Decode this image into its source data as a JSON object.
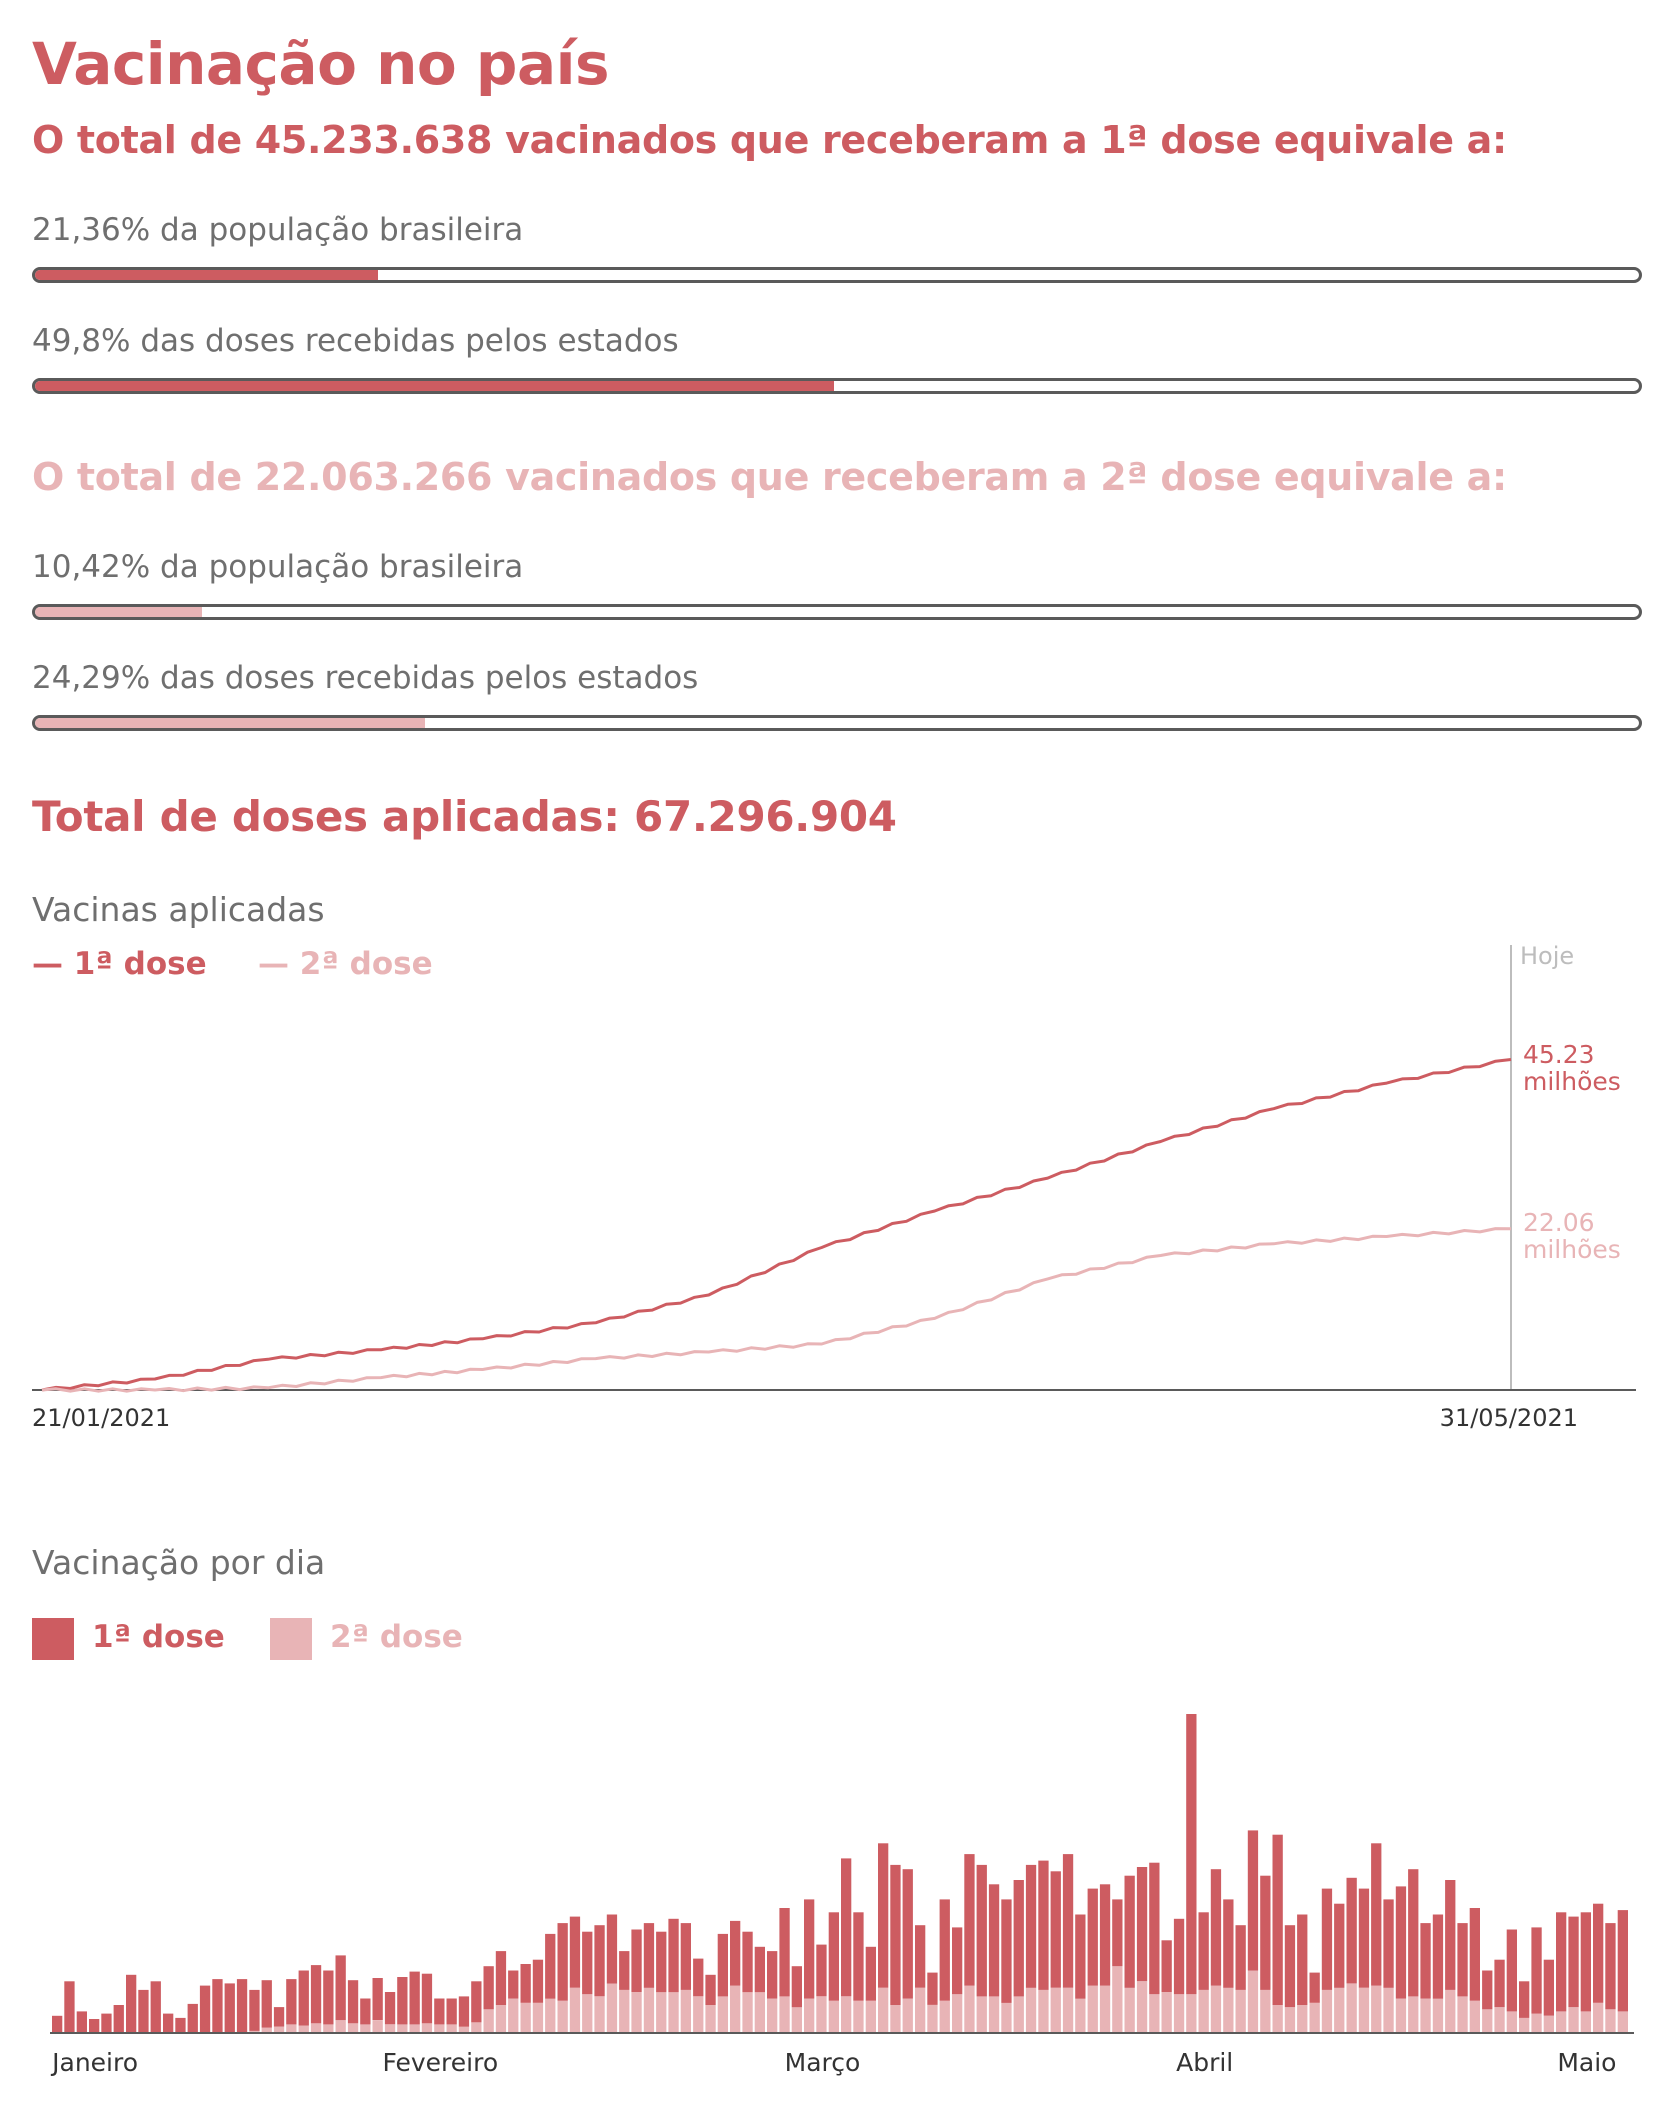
{
  "title": "Vacinação no país",
  "dose1_summary": {
    "heading": "O total de 45.233.638 vacinados que receberam a 1ª dose equivale a:",
    "bars": [
      {
        "label": "21,36% da população brasileira",
        "value": 0.2136
      },
      {
        "label": "49,8% das doses recebidas pelos estados",
        "value": 0.498
      }
    ]
  },
  "dose2_summary": {
    "heading": "O total de 22.063.266 vacinados que receberam a 2ª dose equivale a:",
    "bars": [
      {
        "label": "10,42% da população brasileira",
        "value": 0.1042
      },
      {
        "label": "24,29% das doses recebidas pelos estados",
        "value": 0.2429
      }
    ]
  },
  "total_heading": "Total de doses aplicadas: 67.296.904",
  "colors": {
    "dose1": "#cd5c61",
    "dose2": "#e8b4b6",
    "axis": "#5a5a5a",
    "today": "#bdbdbd",
    "text": "#6f6f6f"
  },
  "chart_data": [
    {
      "type": "line",
      "title": "Vacinas aplicadas",
      "legend": [
        "— 1ª dose",
        "— 2ª dose"
      ],
      "today_label": "Hoje",
      "x_start_label": "21/01/2021",
      "x_end_label": "31/05/2021",
      "x": [
        "2021-01-21",
        "2021-01-31",
        "2021-02-10",
        "2021-02-20",
        "2021-03-01",
        "2021-03-11",
        "2021-03-21",
        "2021-03-31",
        "2021-04-10",
        "2021-04-20",
        "2021-04-30",
        "2021-05-10",
        "2021-05-20",
        "2021-05-31"
      ],
      "series": [
        {
          "name": "1ª dose",
          "unit": "milhões",
          "values": [
            0,
            1.5,
            4.2,
            5.5,
            7.0,
            9.2,
            13.0,
            19.5,
            24.5,
            29.0,
            34.0,
            38.5,
            42.0,
            45.23
          ],
          "end_value_label": "45.23",
          "end_unit_label": "milhões"
        },
        {
          "name": "2ª dose",
          "unit": "milhões",
          "values": [
            0,
            0,
            0.3,
            1.7,
            2.8,
            4.3,
            5.2,
            6.3,
            9.8,
            15.2,
            18.4,
            20.0,
            21.0,
            22.06
          ],
          "end_value_label": "22.06",
          "end_unit_label": "milhões"
        }
      ],
      "ylim": [
        0,
        52
      ]
    },
    {
      "type": "bar",
      "stacked": true,
      "title": "Vacinação por dia",
      "legend": [
        "1ª dose",
        "2ª dose"
      ],
      "month_labels": [
        "Janeiro",
        "Fevereiro",
        "Março",
        "Abril",
        "Maio"
      ],
      "month_label_days": [
        3,
        31,
        62,
        93,
        124
      ],
      "start_date": "2021-01-18",
      "series": [
        {
          "name": "1ª dose",
          "values": [
            80,
            240,
            100,
            65,
            90,
            130,
            270,
            200,
            240,
            90,
            70,
            135,
            220,
            250,
            230,
            250,
            190,
            220,
            90,
            210,
            255,
            270,
            250,
            300,
            200,
            120,
            195,
            150,
            220,
            245,
            230,
            120,
            120,
            140,
            190,
            200,
            250,
            130,
            180,
            200,
            300,
            360,
            330,
            290,
            330,
            320,
            180,
            290,
            300,
            280,
            340,
            310,
            175,
            140,
            290,
            300,
            280,
            210,
            220,
            410,
            190,
            460,
            240,
            410,
            640,
            410,
            250,
            670,
            650,
            600,
            290,
            150,
            470,
            310,
            610,
            610,
            520,
            480,
            540,
            570,
            600,
            540,
            620,
            390,
            450,
            470,
            310,
            520,
            530,
            610,
            240,
            350,
            1300,
            360,
            540,
            410,
            300,
            650,
            530,
            790,
            380,
            420,
            140,
            470,
            390,
            490,
            460,
            660,
            410,
            520,
            590,
            350,
            390,
            510,
            340,
            430,
            180,
            220,
            380,
            170,
            400,
            260,
            460,
            420,
            460,
            460,
            400,
            470
          ]
        },
        {
          "name": "2ª dose",
          "values": [
            0,
            0,
            0,
            0,
            0,
            0,
            0,
            0,
            0,
            0,
            0,
            0,
            0,
            0,
            0,
            0,
            10,
            25,
            30,
            40,
            35,
            45,
            40,
            60,
            45,
            40,
            60,
            40,
            40,
            40,
            45,
            40,
            40,
            30,
            50,
            110,
            130,
            160,
            140,
            140,
            160,
            150,
            210,
            180,
            170,
            230,
            200,
            190,
            210,
            190,
            190,
            200,
            170,
            130,
            170,
            220,
            190,
            190,
            160,
            170,
            120,
            160,
            170,
            150,
            170,
            150,
            150,
            210,
            130,
            160,
            210,
            130,
            150,
            180,
            220,
            170,
            170,
            140,
            170,
            210,
            200,
            210,
            210,
            160,
            220,
            220,
            310,
            210,
            240,
            180,
            190,
            180,
            180,
            200,
            220,
            210,
            200,
            290,
            200,
            130,
            120,
            130,
            140,
            200,
            210,
            230,
            210,
            220,
            210,
            160,
            170,
            160,
            160,
            200,
            170,
            150,
            110,
            120,
            100,
            70,
            90,
            80,
            100,
            120,
            100,
            140,
            110,
            100
          ]
        }
      ]
    }
  ]
}
